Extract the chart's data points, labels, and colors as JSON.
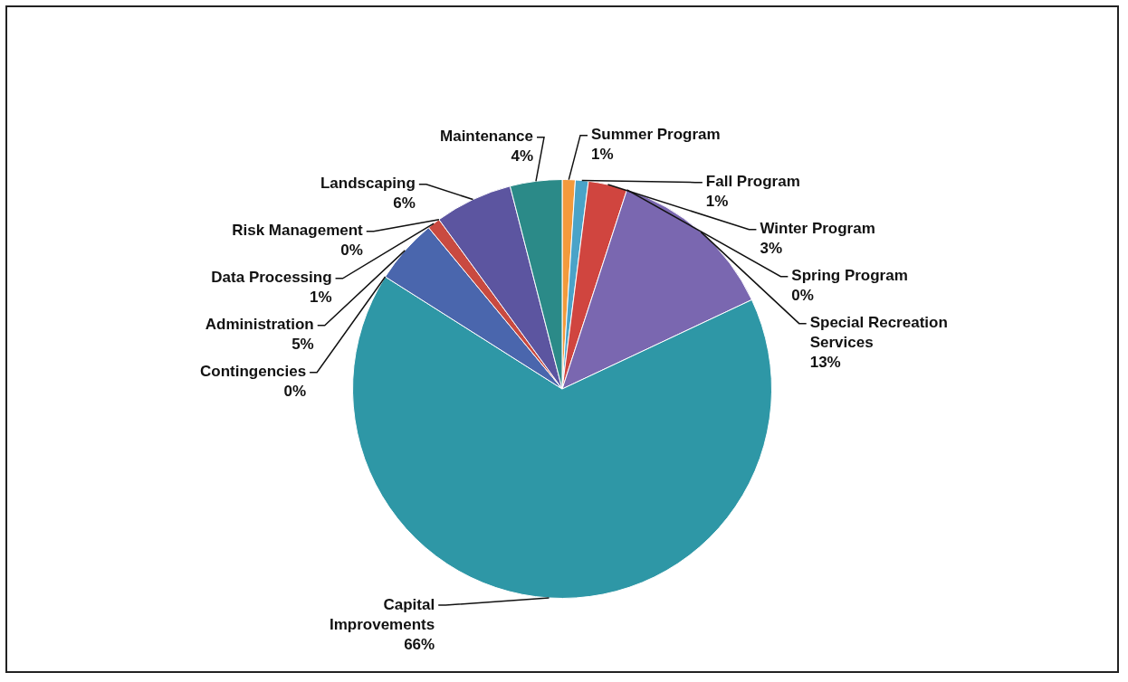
{
  "chart_data": {
    "type": "pie",
    "categories": [
      "Summer Program",
      "Fall Program",
      "Winter Program",
      "Spring Program",
      "Special Recreation Services",
      "Capital Improvements",
      "Contingencies",
      "Administration",
      "Data Processing",
      "Risk Management",
      "Landscaping",
      "Maintenance"
    ],
    "values": [
      1,
      1,
      3,
      0,
      13,
      66,
      0,
      5,
      1,
      0,
      6,
      4
    ],
    "value_labels": [
      "1%",
      "1%",
      "3%",
      "0%",
      "13%",
      "66%",
      "0%",
      "5%",
      "1%",
      "0%",
      "6%",
      "4%"
    ],
    "colors": [
      "#f39a3c",
      "#4aa3c8",
      "#d0453f",
      "#9bbb59",
      "#7a67b0",
      "#2e97a6",
      "#5b8fd0",
      "#4a66ad",
      "#c94a40",
      "#8a8a8a",
      "#5c55a0",
      "#2b8a88"
    ]
  }
}
